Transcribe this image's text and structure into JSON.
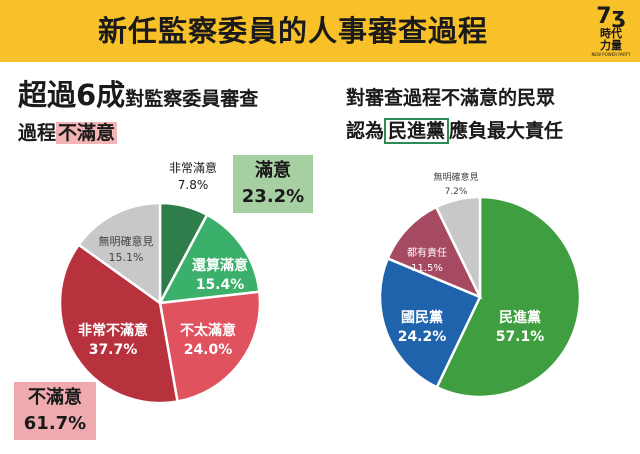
{
  "header": {
    "title": "新任監察委員的人事審查過程",
    "logo_mark": "7ʒ",
    "logo_line1": "時代",
    "logo_line2": "力量",
    "logo_sub": "NEW POWER PARTY"
  },
  "left": {
    "head_big": "超過6成",
    "head_small": "對監察委員審查",
    "head2_plain": "過程",
    "head2_highlight": "不滿意",
    "satisfied_box": {
      "label": "滿意",
      "value": "23.2%"
    },
    "dissatisfied_box": {
      "label": "不滿意",
      "value": "61.7%"
    }
  },
  "right": {
    "line1": "對審查過程不滿意的民眾",
    "line2_pre": "認為",
    "line2_highlight": "民進黨",
    "line2_post": "應負最大責任"
  },
  "colors": {
    "header_bg": "#f8c12a",
    "very_satisfied": "#2f7d4a",
    "somewhat_satisfied": "#3bb06a",
    "not_very_satisfied": "#e0525e",
    "very_dissatisfied": "#b8323e",
    "no_opinion": "#c8c8c8",
    "dpp": "#3f9e3f",
    "kmt": "#1f63ad",
    "all_responsible": "#a64a62"
  },
  "chart_data": [
    {
      "type": "pie",
      "title": "",
      "slices": [
        {
          "label": "非常滿意",
          "value": 7.8,
          "display": "7.8%",
          "color": "#2f7d4a"
        },
        {
          "label": "還算滿意",
          "value": 15.4,
          "display": "15.4%",
          "color": "#3bb06a"
        },
        {
          "label": "不太滿意",
          "value": 24.0,
          "display": "24.0%",
          "color": "#e0525e"
        },
        {
          "label": "非常不滿意",
          "value": 37.7,
          "display": "37.7%",
          "color": "#b8323e"
        },
        {
          "label": "無明確意見",
          "value": 15.1,
          "display": "15.1%",
          "color": "#c8c8c8"
        }
      ]
    },
    {
      "type": "pie",
      "title": "",
      "slices": [
        {
          "label": "民進黨",
          "value": 57.1,
          "display": "57.1%",
          "color": "#3f9e3f"
        },
        {
          "label": "國民黨",
          "value": 24.2,
          "display": "24.2%",
          "color": "#1f63ad"
        },
        {
          "label": "都有責任",
          "value": 11.5,
          "display": "11.5%",
          "color": "#a64a62"
        },
        {
          "label": "無明確意見",
          "value": 7.2,
          "display": "7.2%",
          "color": "#c8c8c8"
        }
      ]
    }
  ]
}
